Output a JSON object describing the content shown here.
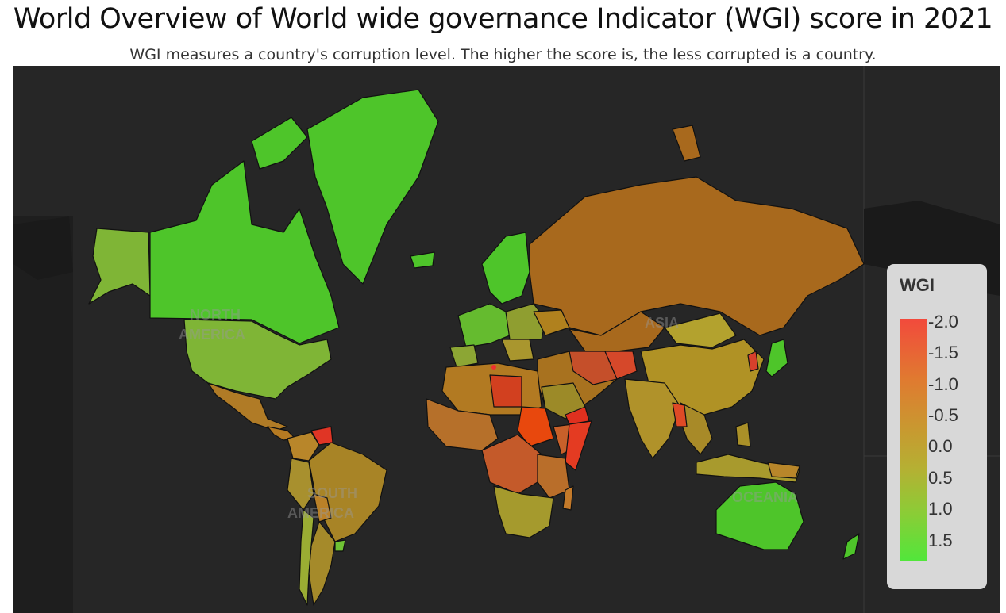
{
  "title": "World Overview of World wide governance Indicator (WGI) score in 2021",
  "subtitle": "WGI measures a country's corruption level. The higher the score is, the less corrupted is a country.",
  "legend": {
    "title": "WGI",
    "ticks": [
      "-2.0",
      "-1.5",
      "-1.0",
      "-0.5",
      "0.0",
      "0.5",
      "1.0",
      "1.5"
    ]
  },
  "basemap_labels": [
    "NORTH",
    "AMERICA",
    "SOUTH",
    "AMERICA",
    "ASIA",
    "OCEANIA"
  ],
  "colors": {
    "ocean": "#262626",
    "high_score": "#4ade2e",
    "low_score": "#f04a3a",
    "mid_score": "#b08a20"
  },
  "chart_data": {
    "type": "heatmap",
    "title": "World Overview of World wide governance Indicator (WGI) score in 2021",
    "subtitle": "WGI measures a country's corruption level. The higher the score is, the less corrupted is a country.",
    "legend_title": "WGI",
    "colorscale_range": [
      -2.0,
      1.5
    ],
    "legend_position": "right"
  }
}
